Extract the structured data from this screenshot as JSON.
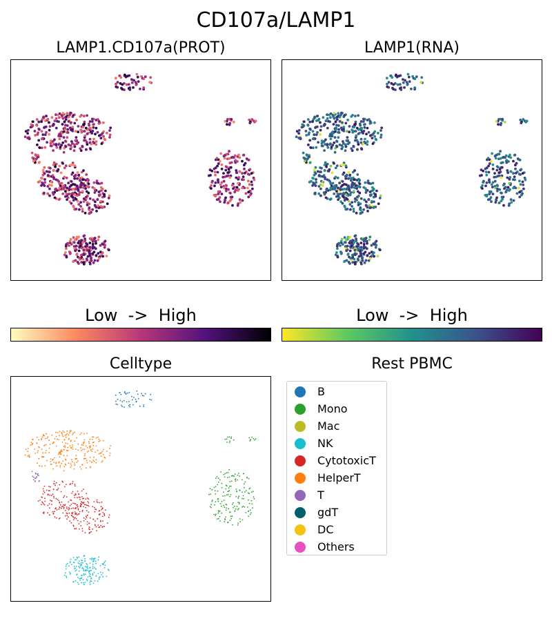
{
  "page": {
    "title": "CD107a/LAMP1",
    "colorbar_label": "Low  ->  High"
  },
  "legend": {
    "title": "Rest PBMC",
    "items": [
      {
        "label": "B",
        "color": "#1f77b4"
      },
      {
        "label": "Mono",
        "color": "#2ca02c"
      },
      {
        "label": "Mac",
        "color": "#bcbd22"
      },
      {
        "label": "NK",
        "color": "#17becf"
      },
      {
        "label": "CytotoxicT",
        "color": "#d62728"
      },
      {
        "label": "HelperT",
        "color": "#ff7f0e"
      },
      {
        "label": "T",
        "color": "#9467bd"
      },
      {
        "label": "gdT",
        "color": "#005f6a"
      },
      {
        "label": "DC",
        "color": "#f5c211"
      },
      {
        "label": "Others",
        "color": "#e84fc0"
      }
    ]
  },
  "chart_data": [
    {
      "type": "scatter",
      "title": "LAMP1.CD107a(PROT)",
      "colormap": "magma",
      "colormap_stops": [
        "#fcfdbf",
        "#fc8961",
        "#b73779",
        "#51127c",
        "#000004"
      ],
      "grid": false,
      "axes_visible": false
    },
    {
      "type": "scatter",
      "title": "LAMP1(RNA)",
      "colormap": "viridis",
      "colormap_stops": [
        "#fde725",
        "#5ec962",
        "#21918c",
        "#3b528b",
        "#440154"
      ],
      "grid": false,
      "axes_visible": false
    },
    {
      "type": "scatter",
      "title": "Celltype",
      "grid": false,
      "axes_visible": false,
      "clusters": [
        {
          "celltype": "B",
          "color": "#1f77b4"
        },
        {
          "celltype": "HelperT",
          "color": "#ff7f0e"
        },
        {
          "celltype": "CytotoxicT",
          "color": "#d62728"
        },
        {
          "celltype": "T",
          "color": "#9467bd"
        },
        {
          "celltype": "Mono",
          "color": "#2ca02c"
        },
        {
          "celltype": "NK",
          "color": "#17becf"
        }
      ]
    }
  ]
}
